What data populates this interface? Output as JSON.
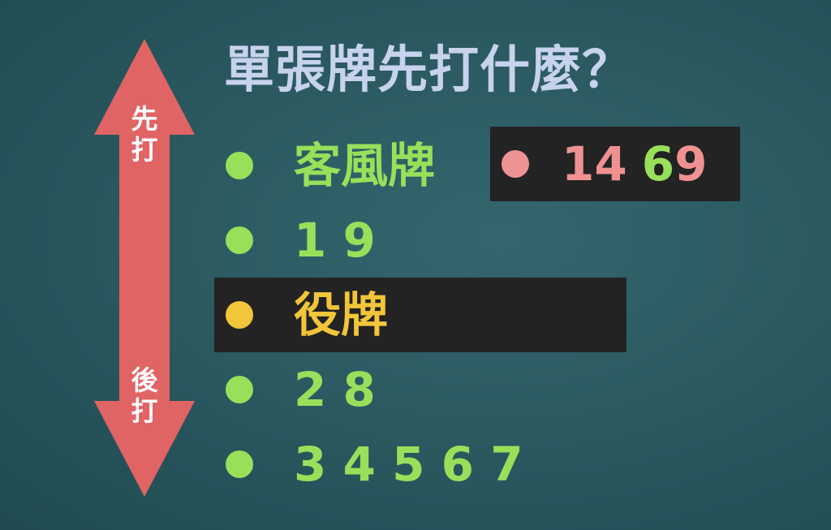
{
  "title": "單張牌先打什麼？",
  "arrow": {
    "top_label": "先打",
    "bottom_label": "後打",
    "color": "#e06464"
  },
  "list": [
    {
      "label": "客風牌",
      "color": "#98e05a"
    },
    {
      "label": "1 9",
      "color": "#98e05a"
    },
    {
      "label": "役牌",
      "color": "#f2c53a"
    },
    {
      "label": "2 8",
      "color": "#98e05a"
    },
    {
      "label": "3 4 5 6 7",
      "color": "#98e05a"
    }
  ],
  "callout": {
    "parts": [
      "14",
      "6",
      "9"
    ],
    "colors": [
      "#ef9191",
      "#98e05a",
      "#ef9191"
    ]
  }
}
